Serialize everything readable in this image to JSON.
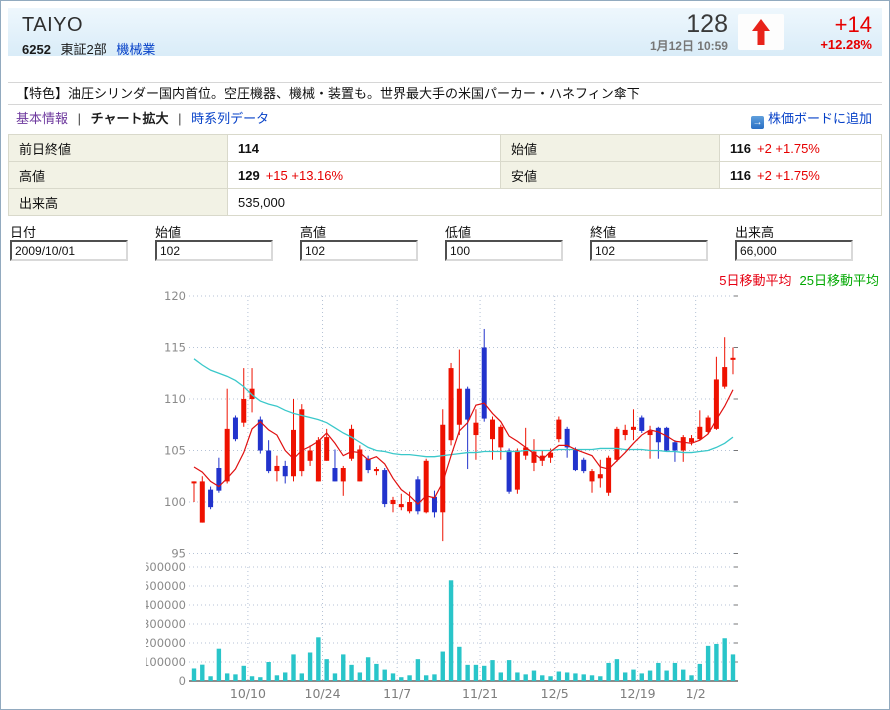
{
  "header": {
    "title": "TAIYO",
    "code": "6252",
    "market": "東証2部",
    "industry": "機械業",
    "price": "128",
    "datetime": "1月12日 10:59",
    "change": "+14",
    "change_pct": "+12.28%",
    "arrow_color": "#e8231a"
  },
  "description": "【特色】油圧シリンダー国内首位。空圧機器、機械・装置も。世界最大手の米国パーカー・ハネフィン傘下",
  "tabs_sep": "|",
  "tabs": [
    {
      "label": "基本情報"
    },
    {
      "label": "チャート拡大"
    },
    {
      "label": "時系列データ"
    }
  ],
  "add_board": {
    "label": "株価ボードに追加",
    "icon": "→"
  },
  "quote": {
    "prev_close_label": "前日終値",
    "prev_close": "114",
    "open_label": "始値",
    "open": "116",
    "open_change": "+2 +1.75%",
    "high_label": "高値",
    "high": "129",
    "high_change": "+15 +13.16%",
    "low_label": "安値",
    "low": "116",
    "low_change": "+2 +1.75%",
    "volume_label": "出来高",
    "volume": "535,000"
  },
  "form": {
    "fields": [
      {
        "label": "日付",
        "value": "2009/10/01"
      },
      {
        "label": "始値",
        "value": "102"
      },
      {
        "label": "高値",
        "value": "102"
      },
      {
        "label": "低値",
        "value": "100"
      },
      {
        "label": "終値",
        "value": "102"
      },
      {
        "label": "出来高",
        "value": "66,000"
      }
    ]
  },
  "legend": {
    "ma5_label": "5日移動平均",
    "ma25_label": "25日移動平均",
    "ma5_color": "#e60012",
    "ma25_color": "#00a800"
  },
  "chart_data": {
    "type": "candlestick+volume",
    "up_color": "#ee1100",
    "down_color": "#2233cc",
    "ma5_color": "#e01010",
    "ma25_color": "#3ac8ca",
    "volume_color": "#29c5c9",
    "grid_color": "#b4c2d6",
    "price_axis": {
      "min": 95,
      "max": 120,
      "ticks": [
        120,
        115,
        110,
        105,
        100,
        95
      ]
    },
    "volume_axis": {
      "min": 0,
      "max": 600000,
      "step": 100000
    },
    "x_labels": [
      {
        "label": "10/10",
        "after_index": 6
      },
      {
        "label": "10/24",
        "after_index": 15
      },
      {
        "label": "11/7",
        "after_index": 24
      },
      {
        "label": "11/21",
        "after_index": 34
      },
      {
        "label": "12/5",
        "after_index": 43
      },
      {
        "label": "12/19",
        "after_index": 53
      },
      {
        "label": "1/2",
        "after_index": 60
      }
    ],
    "columns": [
      "date",
      "open",
      "high",
      "low",
      "close",
      "volume"
    ],
    "candles": [
      [
        "10/01",
        102,
        102,
        100,
        102,
        66000
      ],
      [
        "10/02",
        98,
        102.5,
        98,
        102,
        86000
      ],
      [
        "10/05",
        101.2,
        101.5,
        99.3,
        99.5,
        25000
      ],
      [
        "10/06",
        103.3,
        104.3,
        100.9,
        101.1,
        170000
      ],
      [
        "10/07",
        102,
        111,
        101.8,
        107.1,
        40000
      ],
      [
        "10/08",
        108.2,
        108.4,
        105.9,
        106.1,
        35000
      ],
      [
        "10/09",
        107.7,
        113,
        107.3,
        110,
        80000
      ],
      [
        "10/13",
        110,
        113,
        108.7,
        111,
        25000
      ],
      [
        "10/14",
        108,
        108.3,
        104.7,
        105,
        20000
      ],
      [
        "10/15",
        105,
        106,
        102.8,
        103,
        100000
      ],
      [
        "10/16",
        103,
        104.5,
        102,
        103.5,
        30000
      ],
      [
        "10/19",
        103.5,
        104,
        101.8,
        102.5,
        45000
      ],
      [
        "10/20",
        102.5,
        110,
        102,
        107,
        140000
      ],
      [
        "10/21",
        103,
        109.5,
        102.5,
        109,
        40000
      ],
      [
        "10/22",
        104,
        105.5,
        103.5,
        105,
        150000
      ],
      [
        "10/23",
        102,
        106.3,
        102,
        106,
        230000
      ],
      [
        "10/26",
        104,
        107.1,
        104,
        106.3,
        115000
      ],
      [
        "10/27",
        103.3,
        105.1,
        102,
        102,
        40000
      ],
      [
        "10/28",
        102,
        103.5,
        100.6,
        103.3,
        140000
      ],
      [
        "10/29",
        104.2,
        107.5,
        104,
        107.1,
        85000
      ],
      [
        "10/30",
        102,
        105.5,
        102,
        105.1,
        45000
      ],
      [
        "11/02",
        104.2,
        104.5,
        102.8,
        103.1,
        125000
      ],
      [
        "11/04",
        103,
        103.4,
        102.6,
        103.2,
        90000
      ],
      [
        "11/05",
        103.1,
        103.3,
        99.5,
        99.8,
        60000
      ],
      [
        "11/06",
        99.8,
        100.5,
        99,
        100.2,
        40000
      ],
      [
        "11/09",
        99.5,
        100.8,
        99.2,
        99.8,
        20000
      ],
      [
        "11/10",
        99.1,
        101,
        98.9,
        100,
        30000
      ],
      [
        "11/11",
        102.2,
        102.5,
        98.8,
        99.1,
        115000
      ],
      [
        "11/12",
        99,
        104.2,
        98.9,
        104,
        30000
      ],
      [
        "11/13",
        100.5,
        101.1,
        98.5,
        99,
        35000
      ],
      [
        "11/16",
        99,
        109,
        96.2,
        107.5,
        155000
      ],
      [
        "11/17",
        106,
        113.5,
        105.5,
        113,
        530000
      ],
      [
        "11/18",
        107.5,
        114.8,
        106.5,
        111,
        180000
      ],
      [
        "11/19",
        111,
        111.2,
        103.2,
        108,
        85000
      ],
      [
        "11/20",
        106.5,
        109,
        104.1,
        107.7,
        85000
      ],
      [
        "11/24",
        115,
        116.8,
        107.8,
        108.1,
        80000
      ],
      [
        "11/25",
        106.1,
        108.3,
        104.1,
        108,
        110000
      ],
      [
        "11/26",
        105.3,
        107.5,
        104.1,
        107.3,
        45000
      ],
      [
        "11/27",
        105,
        105.2,
        100.8,
        101,
        110000
      ],
      [
        "11/30",
        101.2,
        105.2,
        100.8,
        105,
        45000
      ],
      [
        "12/01",
        104.5,
        107.2,
        104.1,
        105.3,
        35000
      ],
      [
        "12/02",
        103.8,
        106.1,
        103,
        104.9,
        55000
      ],
      [
        "12/03",
        104,
        105,
        103.5,
        104.5,
        30000
      ],
      [
        "12/04",
        104.3,
        105.2,
        103.8,
        104.8,
        25000
      ],
      [
        "12/07",
        106.1,
        108.3,
        105.8,
        108,
        50000
      ],
      [
        "12/08",
        107.1,
        107.3,
        104.3,
        105.3,
        45000
      ],
      [
        "12/09",
        105.1,
        105.3,
        103,
        103.1,
        40000
      ],
      [
        "12/10",
        104.1,
        104.3,
        102.8,
        103,
        35000
      ],
      [
        "12/11",
        102,
        103.2,
        100.9,
        103,
        30000
      ],
      [
        "12/14",
        102.3,
        104.1,
        101.4,
        102.7,
        25000
      ],
      [
        "12/15",
        100.9,
        104.5,
        100.6,
        104.3,
        95000
      ],
      [
        "12/16",
        104.1,
        107.3,
        103.9,
        107.1,
        115000
      ],
      [
        "12/17",
        106.5,
        107.5,
        106,
        107,
        45000
      ],
      [
        "12/18",
        107,
        109,
        106,
        107.3,
        60000
      ],
      [
        "12/21",
        108.2,
        108.4,
        106.7,
        106.9,
        40000
      ],
      [
        "12/22",
        106.5,
        107.4,
        104.2,
        106.9,
        55000
      ],
      [
        "12/24",
        107.2,
        107.3,
        104.2,
        105.8,
        95000
      ],
      [
        "12/25",
        107.2,
        107.3,
        104.9,
        105,
        55000
      ],
      [
        "12/28",
        105.8,
        106,
        103.9,
        105,
        95000
      ],
      [
        "12/29",
        105,
        106.5,
        103.9,
        106.3,
        60000
      ],
      [
        "12/30",
        105.8,
        106.5,
        105.5,
        106.2,
        30000
      ],
      [
        "1/04",
        106.1,
        108.9,
        106,
        107.3,
        90000
      ],
      [
        "1/05",
        106.8,
        108.4,
        106.6,
        108.2,
        185000
      ],
      [
        "1/06",
        107.1,
        114.1,
        107,
        111.9,
        195000
      ],
      [
        "1/07",
        111.2,
        116,
        111,
        113.1,
        225000
      ],
      [
        "1/08",
        113.8,
        115,
        112.4,
        114,
        140000
      ]
    ],
    "ma5": [
      103.4,
      102.9,
      102.0,
      101.5,
      102.3,
      103.2,
      104.8,
      107.1,
      107.8,
      107.0,
      106.5,
      105.0,
      104.2,
      105.0,
      105.4,
      105.9,
      106.7,
      105.7,
      104.5,
      104.9,
      104.8,
      104.1,
      104.4,
      103.7,
      102.3,
      101.2,
      100.6,
      99.8,
      100.6,
      100.4,
      101.9,
      104.5,
      106.9,
      107.7,
      109.4,
      109.6,
      108.6,
      107.8,
      106.4,
      105.9,
      105.3,
      104.7,
      104.1,
      104.9,
      105.5,
      105.5,
      105.1,
      104.8,
      104.5,
      103.4,
      103.2,
      104.0,
      104.8,
      105.7,
      106.5,
      107.0,
      106.8,
      106.4,
      105.9,
      105.8,
      105.7,
      106.0,
      106.6,
      108.0,
      109.3,
      110.9
    ],
    "ma25": [
      113.9,
      113.3,
      112.8,
      112.5,
      112.2,
      111.8,
      111.2,
      110.4,
      109.8,
      109.5,
      109.3,
      108.9,
      108.6,
      108.4,
      108.2,
      108.0,
      107.7,
      107.2,
      106.7,
      106.3,
      105.8,
      105.3,
      105.0,
      104.9,
      104.7,
      104.6,
      104.6,
      104.5,
      104.4,
      104.4,
      104.5,
      104.6,
      104.7,
      104.8,
      104.8,
      104.9,
      104.9,
      104.9,
      104.9,
      104.9,
      105.0,
      105.0,
      105.0,
      105.0,
      105.1,
      105.1,
      105.1,
      105.1,
      105.1,
      105.2,
      105.2,
      105.2,
      105.1,
      105.1,
      105.1,
      105.0,
      105.0,
      104.9,
      104.9,
      104.8,
      104.8,
      104.9,
      105.0,
      105.3,
      105.7,
      106.3
    ]
  }
}
